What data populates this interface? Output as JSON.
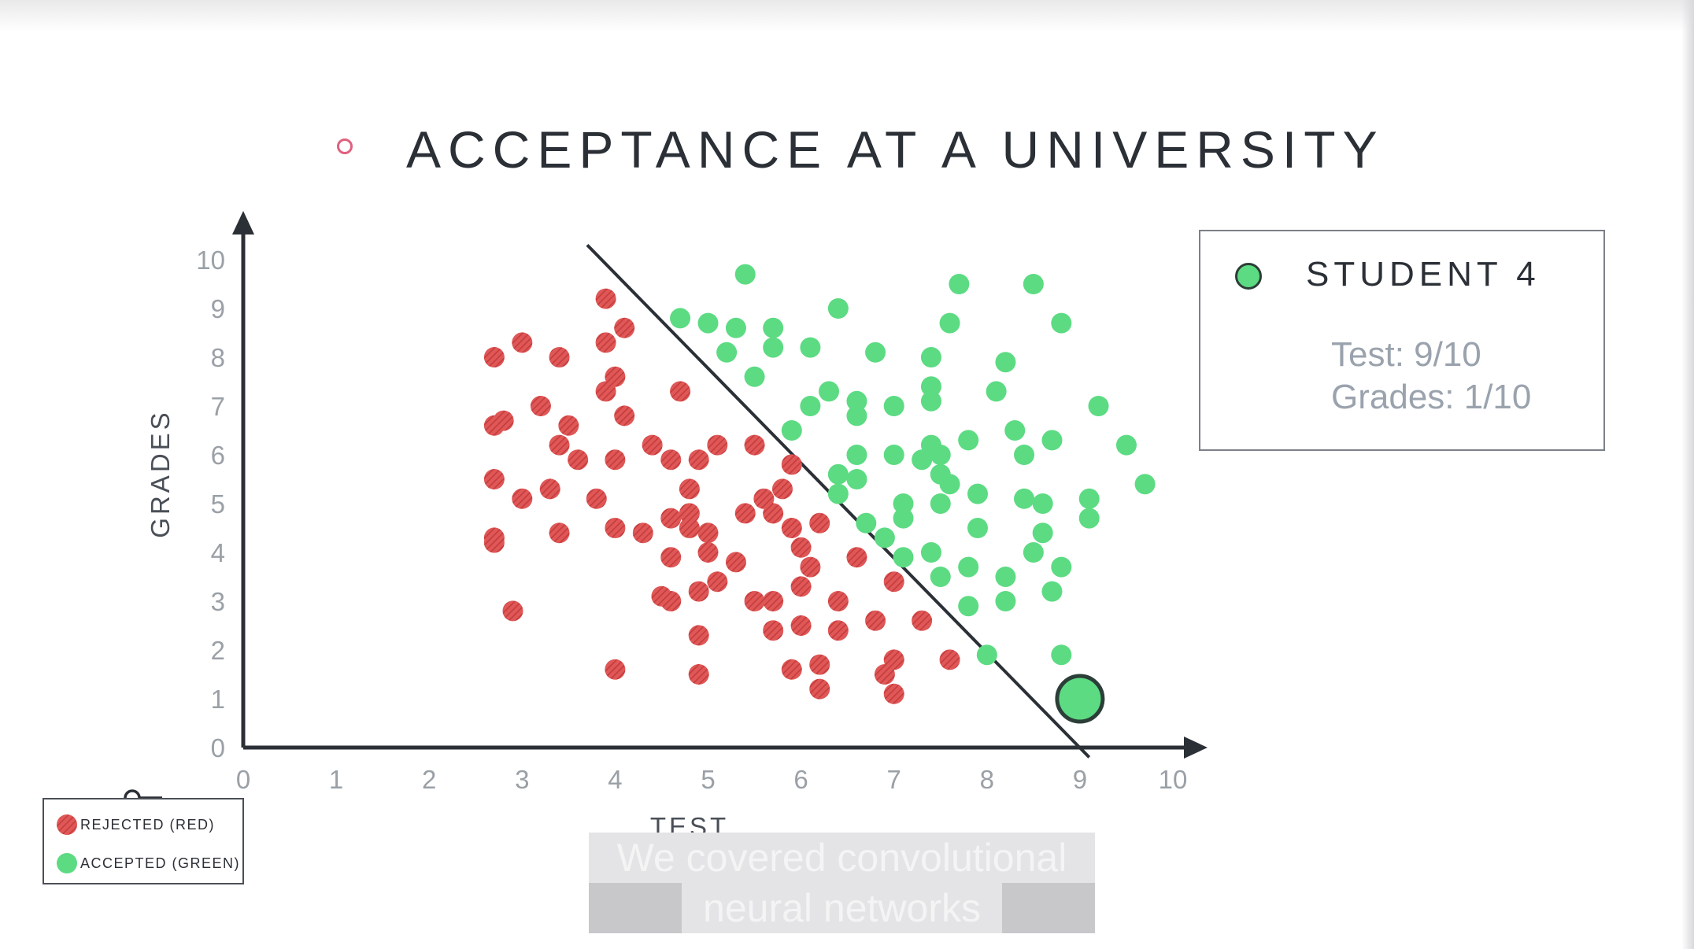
{
  "slide": {
    "title": "ACCEPTANCE AT A UNIVERSITY"
  },
  "info_box": {
    "title": "STUDENT 4",
    "test_line": "Test: 9/10",
    "grades_line": "Grades: 1/10"
  },
  "legend": {
    "rejected_label": "REJECTED (RED)",
    "accepted_label": "ACCEPTED (GREEN)"
  },
  "caption": {
    "line1": "We covered convolutional",
    "line2": "neural networks"
  },
  "colors": {
    "rejected": "#e05757",
    "accepted": "#5cdb83",
    "axis": "#2b2f36",
    "highlight_stroke": "#2c3e38"
  },
  "icons": {
    "bullet": "circle-outline-icon",
    "legend_key": "key-icon"
  },
  "chart_data": {
    "type": "scatter",
    "xlabel": "TEST",
    "ylabel": "GRADES",
    "xlim": [
      0,
      10
    ],
    "ylim": [
      0,
      10
    ],
    "xticks": [
      "0",
      "1",
      "2",
      "3",
      "4",
      "5",
      "6",
      "7",
      "8",
      "9",
      "10"
    ],
    "yticks": [
      "0",
      "1",
      "2",
      "3",
      "4",
      "5",
      "6",
      "7",
      "8",
      "9",
      "10"
    ],
    "grid": false,
    "boundary_line": {
      "x1": 3.7,
      "y1": 10.3,
      "x2": 9.1,
      "y2": -0.2
    },
    "highlight_point": {
      "x": 9,
      "y": 1,
      "label": "STUDENT 4"
    },
    "series": [
      {
        "name": "REJECTED (RED)",
        "x": [
          3.9,
          4.1,
          2.7,
          3.0,
          3.4,
          3.9,
          4.0,
          3.9,
          4.1,
          4.7,
          3.2,
          2.8,
          2.7,
          3.5,
          3.4,
          2.7,
          3.6,
          4.4,
          4.0,
          5.1,
          5.5,
          4.6,
          4.9,
          5.9,
          2.7,
          3.3,
          3.0,
          3.8,
          4.8,
          5.8,
          5.6,
          4.0,
          4.3,
          4.8,
          5.4,
          5.7,
          3.4,
          2.7,
          5.0,
          4.6,
          4.8,
          5.9,
          6.2,
          4.6,
          5.0,
          6.0,
          6.6,
          6.1,
          5.3,
          4.5,
          4.6,
          4.9,
          5.1,
          6.0,
          7.0,
          5.5,
          5.7,
          6.4,
          2.9,
          4.9,
          5.7,
          6.0,
          6.8,
          7.3,
          6.4,
          7.6,
          4.0,
          4.9,
          6.2,
          7.0,
          5.9,
          6.9,
          6.2,
          7.0
        ],
        "y": [
          9.2,
          8.6,
          8.0,
          8.3,
          8.0,
          8.3,
          7.6,
          7.3,
          6.8,
          7.3,
          7.0,
          6.7,
          6.6,
          6.6,
          6.2,
          5.5,
          5.9,
          6.2,
          5.9,
          6.2,
          6.2,
          5.9,
          5.9,
          5.8,
          4.3,
          5.3,
          5.1,
          5.1,
          5.3,
          5.3,
          5.1,
          4.5,
          4.4,
          4.5,
          4.8,
          4.8,
          4.4,
          4.2,
          4.4,
          4.7,
          4.8,
          4.5,
          4.6,
          3.9,
          4.0,
          4.1,
          3.9,
          3.7,
          3.8,
          3.1,
          3.0,
          3.2,
          3.4,
          3.3,
          3.4,
          3.0,
          3.0,
          3.0,
          2.8,
          2.3,
          2.4,
          2.5,
          2.6,
          2.6,
          2.4,
          1.8,
          1.6,
          1.5,
          1.7,
          1.8,
          1.6,
          1.5,
          1.2,
          1.1
        ]
      },
      {
        "name": "ACCEPTED (GREEN)",
        "x": [
          5.4,
          4.7,
          5.0,
          5.3,
          5.7,
          6.4,
          7.7,
          8.5,
          7.6,
          8.8,
          5.2,
          5.7,
          6.1,
          6.8,
          7.4,
          8.2,
          5.5,
          7.4,
          6.3,
          7.4,
          7.0,
          8.1,
          6.6,
          5.9,
          7.5,
          7.4,
          9.2,
          6.6,
          6.1,
          8.3,
          8.7,
          7.8,
          9.5,
          6.6,
          7.0,
          7.3,
          8.4,
          7.5,
          6.4,
          6.6,
          7.6,
          7.9,
          6.4,
          7.1,
          8.4,
          8.6,
          9.1,
          7.5,
          7.1,
          6.7,
          7.9,
          9.1,
          8.6,
          6.9,
          7.4,
          8.5,
          7.1,
          7.8,
          8.8,
          9.7,
          8.2,
          8.7,
          7.5,
          8.2,
          7.8,
          8.8,
          8.0
        ],
        "y": [
          9.7,
          8.8,
          8.7,
          8.6,
          8.6,
          9.0,
          9.5,
          9.5,
          8.7,
          8.7,
          8.1,
          8.2,
          8.2,
          8.1,
          8.0,
          7.9,
          7.6,
          7.4,
          7.3,
          7.1,
          7.0,
          7.3,
          7.1,
          6.5,
          6.0,
          6.2,
          7.0,
          6.8,
          7.0,
          6.5,
          6.3,
          6.3,
          6.2,
          6.0,
          6.0,
          5.9,
          6.0,
          5.6,
          5.6,
          5.5,
          5.4,
          5.2,
          5.2,
          5.0,
          5.1,
          5.0,
          5.1,
          5.0,
          4.7,
          4.6,
          4.5,
          4.7,
          4.4,
          4.3,
          4.0,
          4.0,
          3.9,
          3.7,
          3.7,
          5.4,
          3.5,
          3.2,
          3.5,
          3.0,
          2.9,
          1.9,
          1.9
        ]
      }
    ]
  }
}
